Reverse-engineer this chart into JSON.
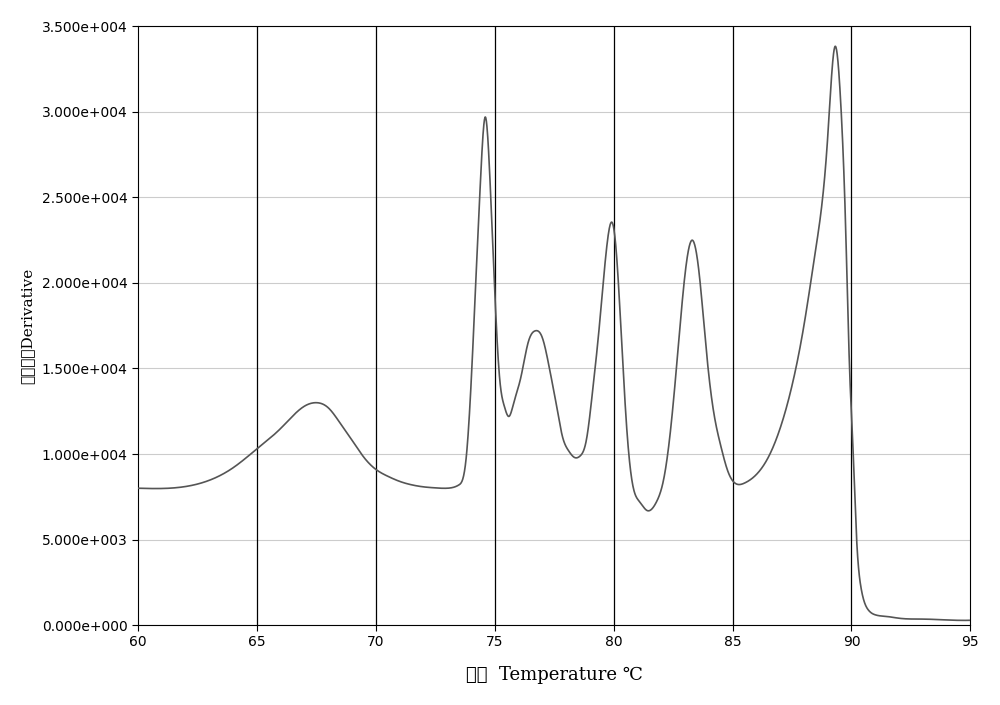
{
  "title": "",
  "xlabel": "温度  Temperature ℃",
  "ylabel": "信号强度Derivative",
  "xlim": [
    60,
    95
  ],
  "ylim": [
    0,
    35000
  ],
  "xticks": [
    60,
    65,
    70,
    75,
    80,
    85,
    90,
    95
  ],
  "yticks": [
    0,
    5000,
    10000,
    15000,
    20000,
    25000,
    30000,
    35000
  ],
  "vlines": [
    65,
    70,
    75,
    80,
    85,
    90
  ],
  "line_color": "#555555",
  "background_color": "#ffffff",
  "grid_color": "#cccccc",
  "curve_x": [
    60.0,
    62.0,
    64.0,
    65.0,
    66.0,
    67.0,
    67.5,
    68.0,
    68.5,
    69.0,
    69.5,
    70.0,
    70.5,
    71.0,
    71.5,
    72.0,
    72.5,
    73.0,
    73.5,
    73.8,
    74.0,
    74.2,
    74.4,
    74.6,
    74.8,
    75.0,
    75.2,
    75.4,
    75.6,
    75.8,
    76.1,
    76.4,
    76.7,
    77.0,
    77.3,
    77.6,
    77.85,
    78.1,
    78.35,
    78.6,
    78.85,
    79.1,
    79.4,
    79.7,
    79.95,
    80.1,
    80.3,
    80.55,
    80.8,
    81.1,
    81.4,
    81.8,
    82.1,
    82.4,
    82.7,
    83.0,
    83.3,
    83.6,
    83.9,
    84.2,
    84.5,
    84.8,
    85.1,
    85.5,
    86.0,
    86.5,
    87.0,
    87.5,
    88.0,
    88.5,
    89.0,
    89.3,
    89.55,
    89.75,
    89.92,
    90.05,
    90.2,
    90.4,
    90.7,
    91.0,
    91.5,
    92.0,
    93.0,
    94.0,
    95.0
  ],
  "curve_y": [
    8000,
    8100,
    9200,
    10300,
    11500,
    12800,
    13000,
    12700,
    11800,
    10800,
    9800,
    9100,
    8700,
    8400,
    8200,
    8080,
    8020,
    8000,
    8200,
    9800,
    14000,
    20000,
    26000,
    29700,
    26000,
    19500,
    14500,
    12800,
    12200,
    13000,
    14500,
    16500,
    17200,
    16800,
    15000,
    12800,
    11000,
    10200,
    9800,
    9900,
    10800,
    13500,
    17500,
    22000,
    23500,
    22000,
    17500,
    11500,
    8200,
    7200,
    6700,
    7200,
    8500,
    11500,
    16000,
    20500,
    22500,
    20500,
    16000,
    12500,
    10500,
    9000,
    8300,
    8300,
    8800,
    9800,
    11500,
    14000,
    17500,
    22000,
    28500,
    33800,
    30500,
    23500,
    15000,
    10800,
    5500,
    2200,
    900,
    600,
    500,
    400,
    350,
    300,
    280
  ]
}
